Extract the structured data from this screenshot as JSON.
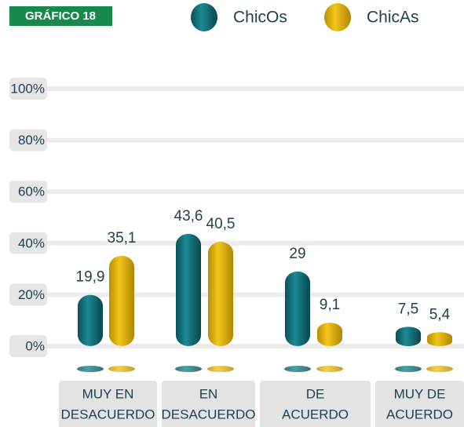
{
  "chart_data": {
    "type": "bar",
    "badge": "GRÁFICO 18",
    "categories": [
      [
        "MUY EN",
        "DESACUERDO"
      ],
      [
        "EN",
        "DESACUERDO"
      ],
      [
        "DE",
        "ACUERDO"
      ],
      [
        "MUY DE",
        "ACUERDO"
      ]
    ],
    "series": [
      {
        "name": "ChicOs",
        "color": "#0f6b73",
        "values": [
          19.9,
          43.6,
          29,
          7.5
        ],
        "value_labels": [
          "19,9",
          "43,6",
          "29",
          "7,5"
        ]
      },
      {
        "name": "ChicAs",
        "color": "#dcad08",
        "values": [
          35.1,
          40.5,
          9.1,
          5.4
        ],
        "value_labels": [
          "35,1",
          "40,5",
          "9,1",
          "5,4"
        ]
      }
    ],
    "ylim": [
      0,
      100
    ],
    "yticks": [
      {
        "value": 0,
        "label": "0%"
      },
      {
        "value": 20,
        "label": "20%"
      },
      {
        "value": 40,
        "label": "40%"
      },
      {
        "value": 60,
        "label": "60%"
      },
      {
        "value": 80,
        "label": "80%"
      },
      {
        "value": 100,
        "label": "100%"
      }
    ],
    "grid": true
  }
}
